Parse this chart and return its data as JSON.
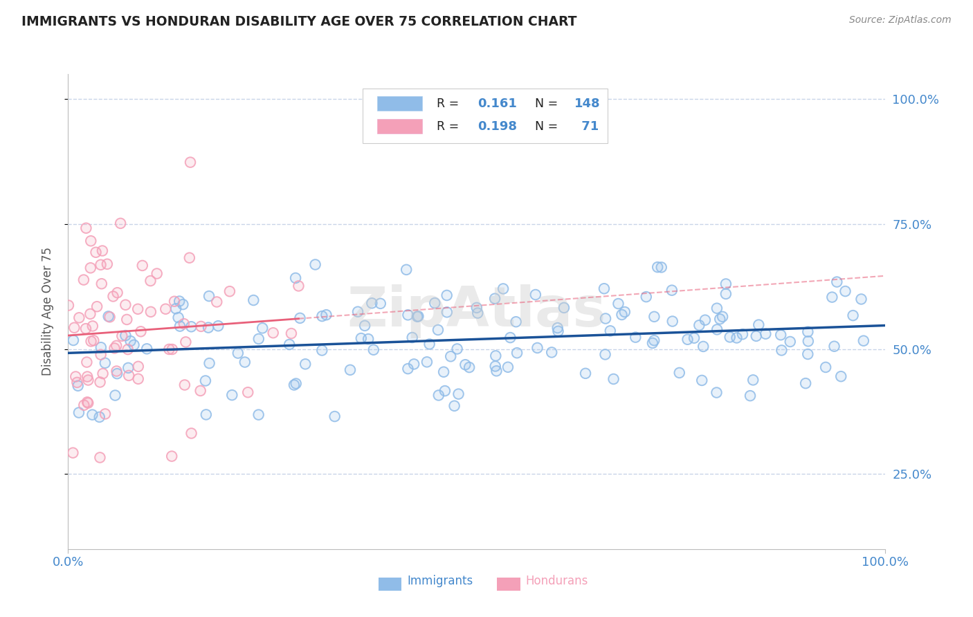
{
  "title": "IMMIGRANTS VS HONDURAN DISABILITY AGE OVER 75 CORRELATION CHART",
  "source_text": "Source: ZipAtlas.com",
  "ylabel": "Disability Age Over 75",
  "ytick_labels": [
    "25.0%",
    "50.0%",
    "75.0%",
    "100.0%"
  ],
  "ytick_values": [
    0.25,
    0.5,
    0.75,
    1.0
  ],
  "xlim": [
    0.0,
    1.0
  ],
  "ylim": [
    0.1,
    1.05
  ],
  "watermark": "ZipAtlas",
  "immigrants_R": 0.161,
  "immigrants_N": 148,
  "hondurans_R": 0.198,
  "hondurans_N": 71,
  "blue_color": "#90bce8",
  "pink_color": "#f4a0b8",
  "trend_blue": "#1a5298",
  "trend_pink": "#e8607a",
  "background_color": "#ffffff",
  "grid_color": "#c8d4e8",
  "title_color": "#222222",
  "axis_label_color": "#4488cc",
  "legend_text_color": "#222222",
  "legend_RN_color": "#4488cc",
  "seed_immigrants": 7,
  "seed_hondurans": 13
}
